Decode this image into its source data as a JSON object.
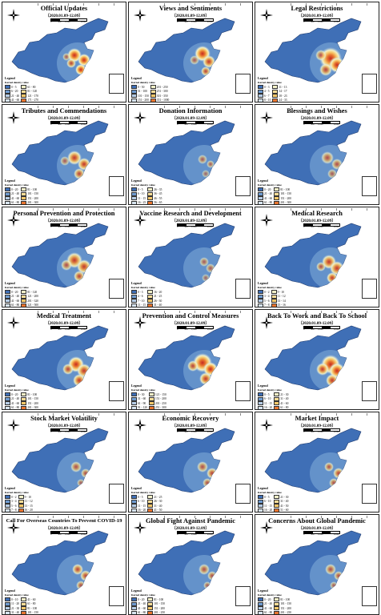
{
  "figure": {
    "date_range": "（2020.01.09-12.09）",
    "legend_title": "Legend",
    "kernel_label": "Kernel density value",
    "scale_labels": [
      "0",
      "500",
      "1,000",
      "2,000"
    ],
    "colors": {
      "ocean_land": "#3f6fb6",
      "low": "#6e9bd0",
      "mid_low": "#b6cde6",
      "mid": "#f2f0c8",
      "mid_high": "#f7c86a",
      "high": "#e7742f",
      "peak": "#c62a22"
    },
    "panels": [
      {
        "title": "Official Updates",
        "legend_items": [
          "0 - 5",
          "6 - 20",
          "21 - 40",
          "41 - 60",
          "61 - 80",
          "81 - 120",
          "121 - 170",
          "171 - 270",
          ">270"
        ]
      },
      {
        "title": "Views and Sentiments",
        "legend_items": [
          "0 - 50",
          "51 - 100",
          "101 - 150",
          "151 - 200",
          "201 - 250",
          "251 - 300",
          "301 - 350",
          "351 - 1000",
          ">1000"
        ]
      },
      {
        "title": "Legal Restrictions",
        "legend_items": [
          "0 - 3",
          "4 - 5",
          "6 - 7",
          "8 - 10",
          "11 - 13",
          "14 - 17",
          "18 - 23",
          "24 - 33",
          ">33"
        ]
      },
      {
        "title": "Tributes and Commendations",
        "legend_items": [
          "0 - 20",
          "21 - 40",
          "41 - 60",
          "61 - 80",
          "81 - 100",
          "101 - 150",
          "151 - 200",
          "201 - 300",
          ">300"
        ]
      },
      {
        "title": "Donation Information",
        "legend_items": [
          "0 - 5",
          "6 - 10",
          "11 - 15",
          "16 - 25",
          "26 - 35",
          "36 - 45",
          "46 - 55",
          "56 - 65",
          ">65"
        ]
      },
      {
        "title": "Blessings and Wishes",
        "legend_items": [
          "0 - 20",
          "21 - 40",
          "41 - 60",
          "61 - 80",
          "81 - 100",
          "101 - 150",
          "151 - 200",
          "201 - 300",
          ">300"
        ]
      },
      {
        "title": "Personal Prevention and Protection",
        "legend_items": [
          "0 - 20",
          "21 - 40",
          "41 - 60",
          "61 - 80",
          "81 - 120",
          "121 - 200",
          "201 - 320",
          "321 - 500",
          ">500"
        ]
      },
      {
        "title": "Vaccine Research and Development",
        "legend_items": [
          "0 - 3",
          "4 - 6",
          "7 - 10",
          "11 - 15",
          "16 - 20",
          "21 - 25",
          "26 - 30",
          "31 - 40",
          ">40"
        ]
      },
      {
        "title": "Medical Research",
        "legend_items": [
          "0 - 2",
          "3 - 4",
          "5 - 6",
          "7 - 8",
          "9 - 10",
          "11 - 12",
          "13 - 14",
          "15 - 16",
          ">16"
        ]
      },
      {
        "title": "Medical Treatment",
        "legend_items": [
          "0 - 20",
          "21 - 40",
          "41 - 60",
          "61 - 80",
          "81 - 100",
          "101 - 150",
          "151 - 200",
          "201 - 300",
          ">300"
        ]
      },
      {
        "title": "Prevention and Control Measures",
        "legend_items": [
          "0 - 30",
          "31 - 60",
          "61 - 90",
          "91 - 120",
          "121 - 150",
          "151 - 200",
          "201 - 250",
          "251 - 300",
          ">300"
        ]
      },
      {
        "title": "Back To Work and Back To School",
        "legend_items": [
          "0 - 5",
          "6 - 10",
          "11 - 15",
          "16 - 20",
          "21 - 30",
          "31 - 40",
          "41 - 60",
          "61 - 80",
          ">80"
        ]
      },
      {
        "title": "Stock Market Volatility",
        "legend_items": [
          "0 - 2",
          "3 - 4",
          "5 - 6",
          "7 - 8",
          "9 - 10",
          "11 - 12",
          "13 - 15",
          "16 - 20",
          ">20"
        ]
      },
      {
        "title": "Economic Recovery",
        "legend_items": [
          "0 - 5",
          "6 - 10",
          "11 - 15",
          "16 - 20",
          "21 - 25",
          "26 - 30",
          "31 - 40",
          "41 - 50",
          ">50"
        ]
      },
      {
        "title": "Market Impact",
        "legend_items": [
          "0 - 5",
          "6 - 10",
          "11 - 15",
          "16 - 20",
          "21 - 30",
          "31 - 40",
          "41 - 50",
          "51 - 60",
          ">60"
        ]
      },
      {
        "title": "Call For Overseas Countries To Prevent COVID-19",
        "legend_items": [
          "0 - 10",
          "11 - 20",
          "21 - 30",
          "31 - 40",
          "41 - 60",
          "61 - 80",
          "81 - 100",
          "101 - 150",
          ">150"
        ]
      },
      {
        "title": "Global Fight Against Pandemic",
        "legend_items": [
          "0 - 20",
          "21 - 40",
          "41 - 60",
          "61 - 80",
          "81 - 100",
          "101 - 150",
          "151 - 200",
          "201 - 250",
          ">250"
        ]
      },
      {
        "title": "Concerns About Global Pandemic",
        "legend_items": [
          "0 - 20",
          "21 - 40",
          "41 - 60",
          "61 - 80",
          "81 - 100",
          "101 - 150",
          "151 - 200",
          "201 - 250",
          ">250"
        ]
      }
    ]
  }
}
